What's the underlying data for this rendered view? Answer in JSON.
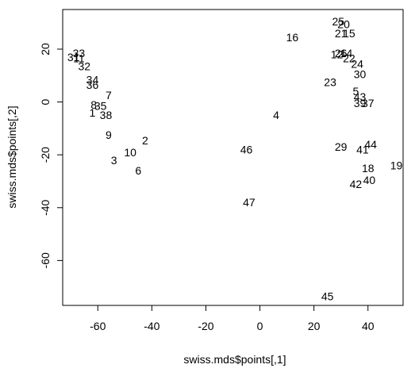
{
  "chart_data": {
    "type": "scatter",
    "marker": "text",
    "xlabel": "swiss.mds$points[,1]",
    "ylabel": "swiss.mds$points[,2]",
    "xlim": [
      -73,
      53
    ],
    "ylim": [
      -77,
      35
    ],
    "xticks": [
      -60,
      -40,
      -20,
      0,
      20,
      40
    ],
    "yticks": [
      -60,
      -40,
      -20,
      0,
      20
    ],
    "grid": false,
    "points": [
      {
        "label": "25",
        "x": 29,
        "y": 30.5
      },
      {
        "label": "20",
        "x": 31,
        "y": 29.5
      },
      {
        "label": "21",
        "x": 30,
        "y": 26
      },
      {
        "label": "15",
        "x": 33,
        "y": 26
      },
      {
        "label": "16",
        "x": 12,
        "y": 24.5
      },
      {
        "label": "26",
        "x": 30,
        "y": 18.5
      },
      {
        "label": "14",
        "x": 32,
        "y": 18.5
      },
      {
        "label": "12",
        "x": 28.5,
        "y": 18
      },
      {
        "label": "22",
        "x": 33,
        "y": 16.5
      },
      {
        "label": "24",
        "x": 36,
        "y": 14.5
      },
      {
        "label": "30",
        "x": 37,
        "y": 10.5
      },
      {
        "label": "23",
        "x": 26,
        "y": 7.5
      },
      {
        "label": "5",
        "x": 35.5,
        "y": 4
      },
      {
        "label": "43",
        "x": 37,
        "y": 2
      },
      {
        "label": "39",
        "x": 37,
        "y": -0.5
      },
      {
        "label": "37",
        "x": 40,
        "y": -0.5
      },
      {
        "label": "33",
        "x": -67,
        "y": 18.5
      },
      {
        "label": "31",
        "x": -69,
        "y": 17
      },
      {
        "label": "11",
        "x": -67,
        "y": 16.5
      },
      {
        "label": "32",
        "x": -65,
        "y": 13.5
      },
      {
        "label": "34",
        "x": -62,
        "y": 8.5
      },
      {
        "label": "36",
        "x": -62,
        "y": 6.5
      },
      {
        "label": "7",
        "x": -56,
        "y": 2.5
      },
      {
        "label": "8",
        "x": -61.5,
        "y": -1
      },
      {
        "label": "35",
        "x": -59,
        "y": -1.5
      },
      {
        "label": "1",
        "x": -62,
        "y": -4
      },
      {
        "label": "38",
        "x": -57,
        "y": -5
      },
      {
        "label": "4",
        "x": 6,
        "y": -5
      },
      {
        "label": "9",
        "x": -56,
        "y": -12.5
      },
      {
        "label": "2",
        "x": -42.5,
        "y": -14.5
      },
      {
        "label": "10",
        "x": -48,
        "y": -19
      },
      {
        "label": "3",
        "x": -54,
        "y": -22
      },
      {
        "label": "6",
        "x": -45,
        "y": -26
      },
      {
        "label": "46",
        "x": -5,
        "y": -18
      },
      {
        "label": "47",
        "x": -4,
        "y": -38
      },
      {
        "label": "29",
        "x": 30,
        "y": -17
      },
      {
        "label": "41",
        "x": 38,
        "y": -18
      },
      {
        "label": "44",
        "x": 41,
        "y": -16
      },
      {
        "label": "19",
        "x": 50.5,
        "y": -24
      },
      {
        "label": "18",
        "x": 40,
        "y": -25
      },
      {
        "label": "42",
        "x": 35.5,
        "y": -31
      },
      {
        "label": "40",
        "x": 40.5,
        "y": -29.5
      },
      {
        "label": "45",
        "x": 25,
        "y": -73.5
      }
    ]
  }
}
